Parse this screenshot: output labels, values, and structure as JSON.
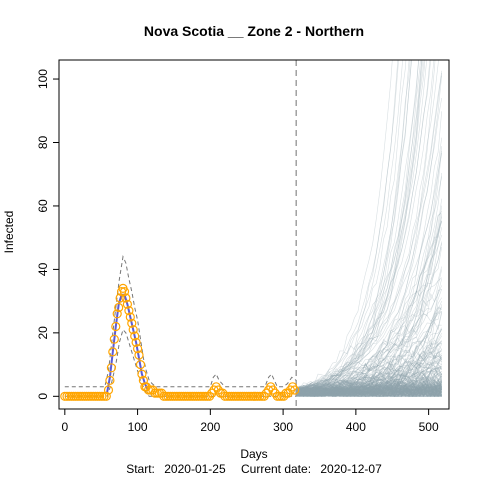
{
  "chart_data": {
    "type": "line",
    "title": "Nova Scotia __ Zone 2 - Northern",
    "xlabel": "Days",
    "ylabel": "Infected",
    "subtitle": {
      "start_label": "Start:",
      "start_date": "2020-01-25",
      "current_label": "Current date:",
      "current_date": "2020-12-07"
    },
    "xlim": [
      -8,
      528
    ],
    "ylim": [
      -4,
      106
    ],
    "x_ticks": [
      0,
      100,
      200,
      300,
      400,
      500
    ],
    "y_ticks": [
      0,
      20,
      40,
      60,
      80,
      100
    ],
    "current_day": 318,
    "grid": false,
    "series": [
      {
        "kind": "observed",
        "color": "#FFA500",
        "points": [
          [
            0,
            0
          ],
          [
            3,
            0
          ],
          [
            6,
            0
          ],
          [
            9,
            0
          ],
          [
            12,
            0
          ],
          [
            15,
            0
          ],
          [
            18,
            0
          ],
          [
            21,
            0
          ],
          [
            24,
            0
          ],
          [
            27,
            0
          ],
          [
            30,
            0
          ],
          [
            33,
            0
          ],
          [
            36,
            0
          ],
          [
            39,
            0
          ],
          [
            42,
            0
          ],
          [
            45,
            0
          ],
          [
            48,
            0
          ],
          [
            51,
            0
          ],
          [
            54,
            0
          ],
          [
            57,
            0
          ],
          [
            60,
            2
          ],
          [
            62,
            5
          ],
          [
            64,
            9
          ],
          [
            66,
            14
          ],
          [
            68,
            18
          ],
          [
            70,
            22
          ],
          [
            72,
            26
          ],
          [
            74,
            28
          ],
          [
            76,
            31
          ],
          [
            78,
            33
          ],
          [
            80,
            34
          ],
          [
            82,
            33
          ],
          [
            84,
            31
          ],
          [
            86,
            29
          ],
          [
            88,
            27
          ],
          [
            90,
            25
          ],
          [
            92,
            23
          ],
          [
            94,
            21
          ],
          [
            96,
            19
          ],
          [
            98,
            17
          ],
          [
            100,
            15
          ],
          [
            102,
            13
          ],
          [
            104,
            10
          ],
          [
            106,
            7
          ],
          [
            108,
            5
          ],
          [
            110,
            3
          ],
          [
            112,
            3
          ],
          [
            115,
            2
          ],
          [
            118,
            2
          ],
          [
            121,
            2
          ],
          [
            124,
            1
          ],
          [
            127,
            1
          ],
          [
            130,
            1
          ],
          [
            133,
            1
          ],
          [
            136,
            0
          ],
          [
            139,
            0
          ],
          [
            142,
            0
          ],
          [
            145,
            0
          ],
          [
            148,
            0
          ],
          [
            151,
            0
          ],
          [
            154,
            0
          ],
          [
            157,
            0
          ],
          [
            160,
            0
          ],
          [
            163,
            0
          ],
          [
            166,
            0
          ],
          [
            169,
            0
          ],
          [
            172,
            0
          ],
          [
            175,
            0
          ],
          [
            178,
            0
          ],
          [
            181,
            0
          ],
          [
            184,
            0
          ],
          [
            187,
            0
          ],
          [
            190,
            0
          ],
          [
            193,
            0
          ],
          [
            196,
            0
          ],
          [
            199,
            0
          ],
          [
            202,
            1
          ],
          [
            205,
            2
          ],
          [
            208,
            3
          ],
          [
            211,
            2
          ],
          [
            214,
            1
          ],
          [
            217,
            1
          ],
          [
            220,
            0
          ],
          [
            223,
            0
          ],
          [
            226,
            0
          ],
          [
            229,
            0
          ],
          [
            232,
            0
          ],
          [
            235,
            0
          ],
          [
            238,
            0
          ],
          [
            241,
            0
          ],
          [
            244,
            0
          ],
          [
            247,
            0
          ],
          [
            250,
            0
          ],
          [
            253,
            0
          ],
          [
            256,
            0
          ],
          [
            259,
            0
          ],
          [
            262,
            0
          ],
          [
            265,
            0
          ],
          [
            268,
            0
          ],
          [
            271,
            0
          ],
          [
            274,
            0
          ],
          [
            277,
            1
          ],
          [
            280,
            2
          ],
          [
            283,
            3
          ],
          [
            286,
            2
          ],
          [
            289,
            1
          ],
          [
            292,
            0
          ],
          [
            295,
            0
          ],
          [
            298,
            0
          ],
          [
            301,
            0
          ],
          [
            304,
            1
          ],
          [
            307,
            1
          ],
          [
            310,
            2
          ],
          [
            313,
            3
          ],
          [
            316,
            2
          ]
        ]
      },
      {
        "kind": "fit",
        "color": "#5B5BD6",
        "points": [
          [
            58,
            1
          ],
          [
            62,
            6
          ],
          [
            66,
            14
          ],
          [
            70,
            22
          ],
          [
            74,
            29
          ],
          [
            78,
            32
          ],
          [
            82,
            32
          ],
          [
            86,
            29
          ],
          [
            90,
            25
          ],
          [
            94,
            21
          ],
          [
            98,
            17
          ],
          [
            102,
            12
          ],
          [
            106,
            7
          ],
          [
            110,
            4
          ],
          [
            114,
            2
          ]
        ]
      },
      {
        "kind": "upper_band",
        "color": "#777777",
        "points": [
          [
            0,
            3
          ],
          [
            55,
            3
          ],
          [
            60,
            8
          ],
          [
            65,
            18
          ],
          [
            70,
            28
          ],
          [
            75,
            37
          ],
          [
            80,
            44
          ],
          [
            84,
            42
          ],
          [
            88,
            37
          ],
          [
            92,
            33
          ],
          [
            96,
            28
          ],
          [
            100,
            24
          ],
          [
            104,
            18
          ],
          [
            108,
            12
          ],
          [
            112,
            8
          ],
          [
            116,
            5
          ],
          [
            120,
            4
          ],
          [
            125,
            3
          ],
          [
            200,
            3
          ],
          [
            204,
            6
          ],
          [
            208,
            7
          ],
          [
            212,
            5
          ],
          [
            216,
            4
          ],
          [
            220,
            3
          ],
          [
            275,
            3
          ],
          [
            280,
            6
          ],
          [
            284,
            7
          ],
          [
            288,
            5
          ],
          [
            292,
            3
          ],
          [
            300,
            3
          ],
          [
            306,
            4
          ],
          [
            312,
            6
          ],
          [
            318,
            5
          ]
        ]
      },
      {
        "kind": "lower_band",
        "color": "#777777",
        "points": [
          [
            0,
            0
          ],
          [
            58,
            0
          ],
          [
            64,
            4
          ],
          [
            70,
            10
          ],
          [
            75,
            17
          ],
          [
            80,
            21
          ],
          [
            84,
            20
          ],
          [
            88,
            17
          ],
          [
            92,
            14
          ],
          [
            96,
            11
          ],
          [
            100,
            8
          ],
          [
            104,
            5
          ],
          [
            108,
            3
          ],
          [
            112,
            1
          ],
          [
            116,
            0
          ],
          [
            318,
            0
          ]
        ]
      }
    ],
    "projection": {
      "start_day": 318,
      "end_day": 518,
      "n_paths": 260,
      "color": "#8FA3AD"
    }
  }
}
